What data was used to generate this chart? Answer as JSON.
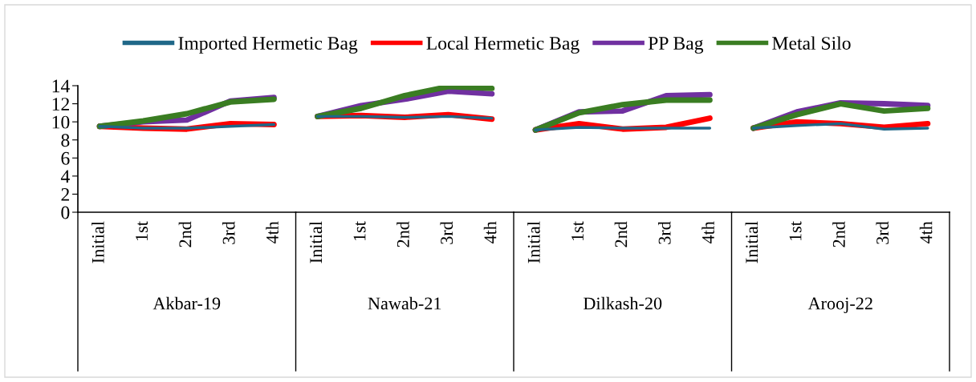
{
  "chart_data": [
    {
      "type": "line",
      "categories": [
        "Initial",
        "1st",
        "2nd",
        "3rd",
        "4th"
      ],
      "xlabel": "Akbar-19",
      "ylim": [
        0,
        14
      ],
      "yticks": [
        0,
        2,
        4,
        6,
        8,
        10,
        12,
        14
      ],
      "grid": false,
      "legend": "top",
      "line_style": "solid",
      "marker": "none",
      "series": [
        {
          "name": "Imported Hermetic Bag",
          "color": "#1f6788",
          "values": [
            9.5,
            9.3,
            9.3,
            9.5,
            9.7
          ]
        },
        {
          "name": "Local Hermetic Bag",
          "color": "#ff0000",
          "values": [
            9.5,
            9.3,
            9.2,
            9.8,
            9.7
          ]
        },
        {
          "name": "PP Bag",
          "color": "#7030a0",
          "values": [
            9.5,
            10.0,
            10.2,
            12.3,
            12.7
          ]
        },
        {
          "name": "Metal Silo",
          "color": "#3a7d22",
          "values": [
            9.5,
            10.1,
            10.9,
            12.2,
            12.5
          ]
        }
      ]
    },
    {
      "type": "line",
      "categories": [
        "Initial",
        "1st",
        "2nd",
        "3rd",
        "4th"
      ],
      "xlabel": "Nawab-21",
      "ylim": [
        0,
        14
      ],
      "tick_labels": "x",
      "grid": false,
      "line_style": "solid",
      "marker": "none",
      "series": [
        {
          "color": "#1f6788",
          "values": [
            10.6,
            10.6,
            10.5,
            10.6,
            10.4
          ]
        },
        {
          "color": "#ff0000",
          "values": [
            10.6,
            10.7,
            10.5,
            10.8,
            10.3
          ]
        },
        {
          "color": "#7030a0",
          "values": [
            10.6,
            11.8,
            12.5,
            13.4,
            13.1
          ]
        },
        {
          "color": "#3a7d22",
          "values": [
            10.6,
            11.5,
            12.9,
            13.9,
            13.7
          ]
        }
      ]
    },
    {
      "type": "line",
      "categories": [
        "Initial",
        "1st",
        "2nd",
        "3rd",
        "4th"
      ],
      "xlabel": "Dilkash-20",
      "ylim": [
        0,
        14
      ],
      "tick_labels": "x",
      "grid": false,
      "line_style": "solid",
      "marker": "none",
      "series": [
        {
          "color": "#1f6788",
          "values": [
            9.1,
            9.4,
            9.3,
            9.3,
            9.3
          ]
        },
        {
          "color": "#ff0000",
          "values": [
            9.1,
            9.8,
            9.2,
            9.4,
            10.4
          ]
        },
        {
          "color": "#7030a0",
          "values": [
            9.1,
            11.1,
            11.2,
            12.9,
            13.0
          ]
        },
        {
          "color": "#3a7d22",
          "values": [
            9.1,
            11.0,
            11.9,
            12.4,
            12.4
          ]
        }
      ]
    },
    {
      "type": "line",
      "categories": [
        "Initial",
        "1st",
        "2nd",
        "3rd",
        "4th"
      ],
      "xlabel": "Arooj-22",
      "ylim": [
        0,
        14
      ],
      "tick_labels": "x",
      "grid": false,
      "line_style": "solid",
      "marker": "none",
      "series": [
        {
          "color": "#1f6788",
          "values": [
            9.3,
            9.6,
            9.8,
            9.2,
            9.3
          ]
        },
        {
          "color": "#ff0000",
          "values": [
            9.3,
            10.0,
            9.8,
            9.4,
            9.8
          ]
        },
        {
          "color": "#7030a0",
          "values": [
            9.3,
            11.1,
            12.1,
            12.0,
            11.8
          ]
        },
        {
          "color": "#3a7d22",
          "values": [
            9.3,
            10.8,
            12.0,
            11.2,
            11.5
          ]
        }
      ]
    }
  ]
}
